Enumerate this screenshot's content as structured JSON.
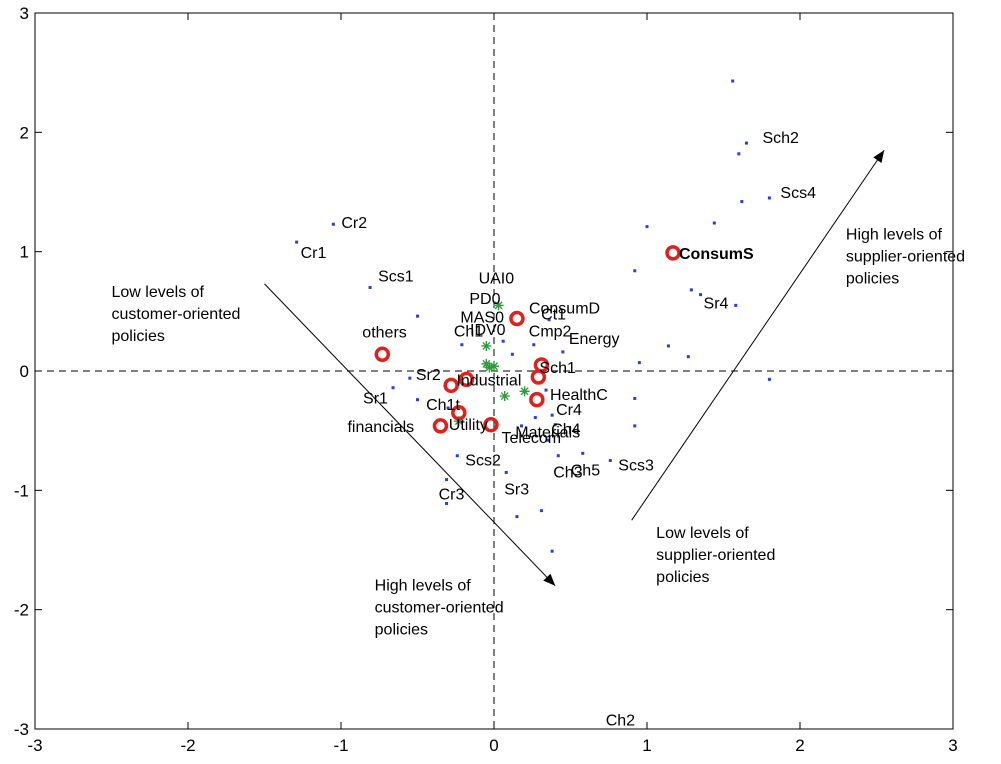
{
  "chart_data": {
    "type": "scatter",
    "xlim": [
      -3,
      3
    ],
    "ylim": [
      -3,
      3
    ],
    "x_ticks": [
      -3,
      -2,
      -1,
      0,
      1,
      2,
      3
    ],
    "y_ticks": [
      -3,
      -2,
      -1,
      0,
      1,
      2,
      3
    ],
    "x_tick_labels": [
      "-3",
      "-2",
      "-1",
      "0",
      "1",
      "2",
      "3"
    ],
    "y_tick_labels": [
      "-3",
      "-2",
      "-1",
      "0",
      "1",
      "2",
      "3"
    ],
    "grid": false,
    "reference_lines": [
      "x=0",
      "y=0"
    ],
    "series": [
      {
        "marker": "dot",
        "color": "#2a3de0",
        "points": [
          {
            "x": -1.29,
            "y": 1.08,
            "label": "Cr1"
          },
          {
            "x": -1.05,
            "y": 1.23,
            "label": "Cr2"
          },
          {
            "x": -0.81,
            "y": 0.7,
            "label": "Scs1"
          },
          {
            "x": -0.5,
            "y": 0.46,
            "label": ""
          },
          {
            "x": -0.55,
            "y": -0.06,
            "label": "Sr2"
          },
          {
            "x": -0.66,
            "y": -0.14,
            "label": "Sr1"
          },
          {
            "x": -0.5,
            "y": -0.24,
            "label": ""
          },
          {
            "x": -0.3,
            "y": -0.31,
            "label": "Ch1t"
          },
          {
            "x": -0.24,
            "y": -0.71,
            "label": "Scs2"
          },
          {
            "x": -0.31,
            "y": -0.91,
            "label": "Cr3"
          },
          {
            "x": -0.31,
            "y": -1.11,
            "label": ""
          },
          {
            "x": -0.21,
            "y": 0.22,
            "label": "Ch1"
          },
          {
            "x": 0.06,
            "y": 0.25,
            "label": ""
          },
          {
            "x": 0.12,
            "y": 0.14,
            "label": ""
          },
          {
            "x": 0.26,
            "y": 0.22,
            "label": "Cmp2"
          },
          {
            "x": 0.36,
            "y": 0.43,
            "label": "Ct1"
          },
          {
            "x": 0.45,
            "y": 0.16,
            "label": "Energy"
          },
          {
            "x": 0.34,
            "y": -0.16,
            "label": "HealthC"
          },
          {
            "x": 0.38,
            "y": -0.37,
            "label": "Cr4"
          },
          {
            "x": 0.4,
            "y": -0.45,
            "label": "Ch4"
          },
          {
            "x": 0.27,
            "y": -0.39,
            "label": "Materials"
          },
          {
            "x": 0.18,
            "y": -0.46,
            "label": "Telecom"
          },
          {
            "x": 0.42,
            "y": -0.71,
            "label": "Ch3"
          },
          {
            "x": 0.58,
            "y": -0.69,
            "label": "Ch5"
          },
          {
            "x": 0.08,
            "y": -0.85,
            "label": "Sr3"
          },
          {
            "x": 0.15,
            "y": -1.22,
            "label": ""
          },
          {
            "x": 0.31,
            "y": -1.17,
            "label": ""
          },
          {
            "x": 0.38,
            "y": -1.51,
            "label": ""
          },
          {
            "x": 0.76,
            "y": -0.75,
            "label": "Scs3"
          },
          {
            "x": 0.92,
            "y": -0.46,
            "label": ""
          },
          {
            "x": 0.92,
            "y": -0.23,
            "label": ""
          },
          {
            "x": 0.95,
            "y": 0.07,
            "label": ""
          },
          {
            "x": 0.92,
            "y": 0.84,
            "label": ""
          },
          {
            "x": 1.0,
            "y": 1.21,
            "label": ""
          },
          {
            "x": 1.14,
            "y": 0.21,
            "label": ""
          },
          {
            "x": 1.27,
            "y": 0.12,
            "label": ""
          },
          {
            "x": 1.29,
            "y": 0.68,
            "label": ""
          },
          {
            "x": 1.35,
            "y": 0.64,
            "label": "Sr4"
          },
          {
            "x": 1.58,
            "y": 0.55,
            "label": ""
          },
          {
            "x": 1.44,
            "y": 1.24,
            "label": ""
          },
          {
            "x": 1.62,
            "y": 1.42,
            "label": ""
          },
          {
            "x": 1.8,
            "y": 1.45,
            "label": "Scs4"
          },
          {
            "x": 1.6,
            "y": 1.82,
            "label": ""
          },
          {
            "x": 1.65,
            "y": 1.91,
            "label": "Sch2"
          },
          {
            "x": 1.56,
            "y": 2.43,
            "label": ""
          },
          {
            "x": 1.8,
            "y": -0.07,
            "label": ""
          },
          {
            "x": 0.35,
            "y": -0.58,
            "label": ""
          }
        ]
      },
      {
        "marker": "star",
        "color": "#2e9a3c",
        "points": [
          {
            "x": 0.03,
            "y": 0.55,
            "label": "UAI0"
          },
          {
            "x": -0.05,
            "y": 0.21,
            "label": "PD0"
          },
          {
            "x": -0.03,
            "y": 0.03,
            "label": "MAS0"
          },
          {
            "x": 0.0,
            "y": 0.04,
            "label": "IDV0"
          },
          {
            "x": -0.23,
            "y": -0.42,
            "label": ""
          },
          {
            "x": 0.2,
            "y": -0.17,
            "label": ""
          },
          {
            "x": 0.07,
            "y": -0.21,
            "label": ""
          },
          {
            "x": -0.05,
            "y": 0.06,
            "label": ""
          }
        ]
      },
      {
        "marker": "circle",
        "color": "#e0201c",
        "points": [
          {
            "x": 1.17,
            "y": 0.99,
            "label": "ConsumS"
          },
          {
            "x": 0.15,
            "y": 0.44,
            "label": "ConsumD"
          },
          {
            "x": -0.73,
            "y": 0.14,
            "label": "others"
          },
          {
            "x": 0.31,
            "y": 0.05,
            "label": "Sch1"
          },
          {
            "x": 0.29,
            "y": -0.05,
            "label": ""
          },
          {
            "x": 0.28,
            "y": -0.24,
            "label": ""
          },
          {
            "x": -0.18,
            "y": -0.07,
            "label": "Industrial"
          },
          {
            "x": -0.28,
            "y": -0.12,
            "label": ""
          },
          {
            "x": -0.23,
            "y": -0.35,
            "label": "Utility"
          },
          {
            "x": -0.35,
            "y": -0.46,
            "label": "financials"
          },
          {
            "x": -0.02,
            "y": -0.45,
            "label": ""
          }
        ]
      }
    ],
    "extra_labels": [
      {
        "x": 0.73,
        "y": -2.92,
        "label": "Ch2"
      }
    ],
    "arrows": [
      {
        "from": [
          -1.5,
          0.73
        ],
        "to": [
          0.4,
          -1.8
        ],
        "label": "Low levels of customer-oriented policies / High levels of customer-oriented policies"
      },
      {
        "from": [
          0.9,
          -1.25
        ],
        "to": [
          2.55,
          1.85
        ],
        "label": "Low levels of supplier-oriented policies / High levels of supplier-oriented policies"
      }
    ],
    "annotations": [
      {
        "lines": [
          "Low levels of",
          "customer-oriented",
          "policies"
        ],
        "x": -2.5,
        "y": 0.62
      },
      {
        "lines": [
          "High levels of",
          "customer-oriented",
          "policies"
        ],
        "x": -0.78,
        "y": -1.84
      },
      {
        "lines": [
          "High levels of",
          "supplier-oriented",
          "policies"
        ],
        "x": 2.3,
        "y": 1.1
      },
      {
        "lines": [
          "Low levels of",
          "supplier-oriented",
          "policies"
        ],
        "x": 1.06,
        "y": -1.4
      }
    ]
  }
}
